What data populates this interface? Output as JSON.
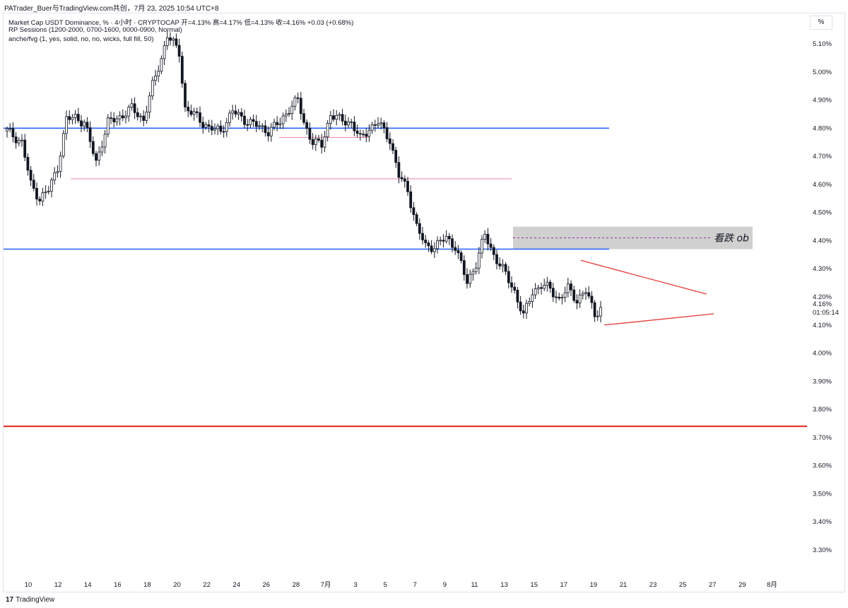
{
  "header": {
    "attribution": "PATrader_Buer与TradingView.com共创，7月 23, 2025 10:54 UTC+8"
  },
  "legend": {
    "line1": "Market Cap USDT Dominance, % · 4小时 · CRYPTOCAP  开=4.13%  高=4.17%  低=4.13%  收=4.16%  +0.03 (+0.68%)",
    "line2": "RP Sessions (1200-2000, 0700-1600, 0000-0900, Normal)",
    "line3": "anche/fvg (1, yes, solid, no, no, wicks, full fill, 50)"
  },
  "scale_button": "%",
  "footer": {
    "logo_mark": "17",
    "brand": "TradingView"
  },
  "colors": {
    "up": "#ffffff",
    "down": "#131722",
    "blue_level": "#2962ff",
    "red_level": "#e53935",
    "pink_level": "#f48fb1",
    "ob_zone": "#c8c8c8",
    "midline": "#9c27b0",
    "grid_text": "#131722"
  },
  "chart_data": {
    "type": "candlestick",
    "title": "Market Cap USDT Dominance, %",
    "ylabel": "%",
    "ylim": [
      3.25,
      5.17
    ],
    "y_ticks": [
      "5.10%",
      "5.00%",
      "4.90%",
      "4.80%",
      "4.70%",
      "4.60%",
      "4.50%",
      "4.40%",
      "4.30%",
      "4.20%",
      "4.10%",
      "4.00%",
      "3.90%",
      "3.80%",
      "3.70%",
      "3.60%",
      "3.50%",
      "3.40%",
      "3.30%"
    ],
    "x_ticks": [
      "10",
      "12",
      "14",
      "16",
      "18",
      "20",
      "22",
      "24",
      "26",
      "28",
      "7月",
      "3",
      "5",
      "7",
      "9",
      "11",
      "13",
      "15",
      "17",
      "19",
      "21",
      "23",
      "25",
      "27",
      "29",
      "8月"
    ],
    "last_price": "4.16%",
    "countdown": "01:05:14",
    "anchors": [
      [
        0,
        4.79
      ],
      [
        5,
        4.75
      ],
      [
        8,
        4.6
      ],
      [
        11,
        4.55
      ],
      [
        14,
        4.58
      ],
      [
        17,
        4.66
      ],
      [
        20,
        4.83
      ],
      [
        23,
        4.84
      ],
      [
        26,
        4.82
      ],
      [
        30,
        4.68
      ],
      [
        34,
        4.82
      ],
      [
        38,
        4.84
      ],
      [
        42,
        4.87
      ],
      [
        46,
        4.83
      ],
      [
        49,
        4.95
      ],
      [
        52,
        5.05
      ],
      [
        54,
        5.13
      ],
      [
        56,
        5.1
      ],
      [
        58,
        5.07
      ],
      [
        60,
        4.87
      ],
      [
        64,
        4.84
      ],
      [
        68,
        4.8
      ],
      [
        72,
        4.79
      ],
      [
        76,
        4.86
      ],
      [
        80,
        4.83
      ],
      [
        84,
        4.81
      ],
      [
        88,
        4.79
      ],
      [
        92,
        4.82
      ],
      [
        95,
        4.87
      ],
      [
        98,
        4.9
      ],
      [
        100,
        4.82
      ],
      [
        103,
        4.75
      ],
      [
        106,
        4.74
      ],
      [
        109,
        4.85
      ],
      [
        112,
        4.83
      ],
      [
        116,
        4.82
      ],
      [
        119,
        4.76
      ],
      [
        122,
        4.8
      ],
      [
        125,
        4.82
      ],
      [
        129,
        4.76
      ],
      [
        132,
        4.63
      ],
      [
        135,
        4.58
      ],
      [
        138,
        4.45
      ],
      [
        141,
        4.38
      ],
      [
        144,
        4.38
      ],
      [
        148,
        4.41
      ],
      [
        151,
        4.38
      ],
      [
        155,
        4.25
      ],
      [
        158,
        4.32
      ],
      [
        161,
        4.42
      ],
      [
        164,
        4.35
      ],
      [
        168,
        4.28
      ],
      [
        171,
        4.22
      ],
      [
        174,
        4.13
      ],
      [
        177,
        4.22
      ],
      [
        180,
        4.24
      ],
      [
        183,
        4.23
      ],
      [
        186,
        4.19
      ],
      [
        189,
        4.23
      ],
      [
        192,
        4.19
      ],
      [
        195,
        4.22
      ],
      [
        198,
        4.14
      ],
      [
        200,
        4.16
      ]
    ],
    "levels": [
      {
        "y": 4.8,
        "color": "#2962ff"
      },
      {
        "y": 4.37,
        "color": "#2962ff"
      },
      {
        "y": 3.74,
        "color": "#e53935"
      },
      {
        "y": 4.767,
        "color": "#f48fb1"
      },
      {
        "y": 4.62,
        "color": "#f48fb1"
      }
    ],
    "ob_zone": {
      "label": "看跌 ob",
      "y_top": 4.45,
      "y_bottom": 4.37,
      "y_mid": 4.41
    },
    "triangle": {
      "upper": [
        [
          4.33
        ],
        [
          4.21
        ]
      ],
      "lower": [
        [
          4.1
        ],
        [
          4.14
        ]
      ]
    }
  }
}
